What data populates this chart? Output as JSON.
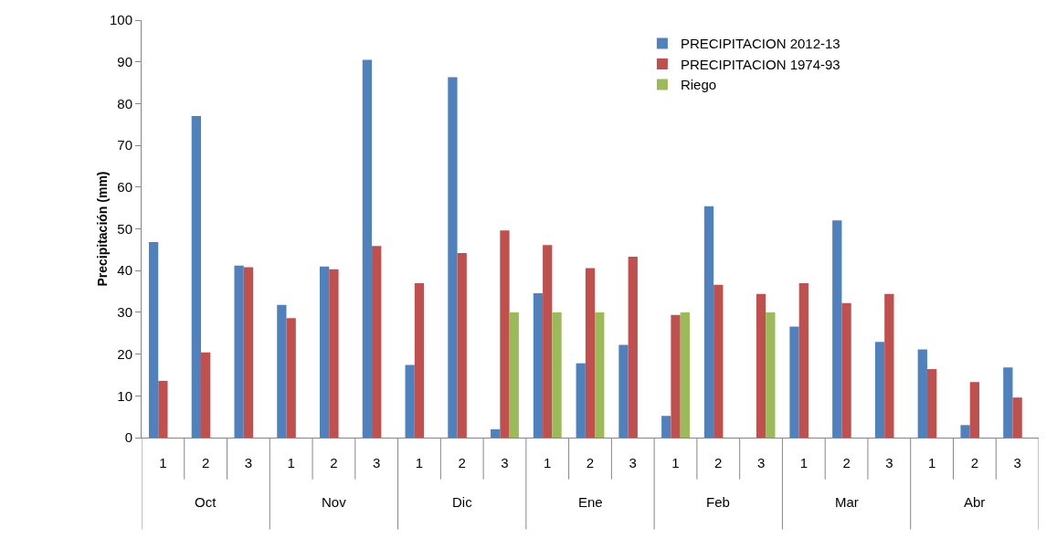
{
  "chart_data": {
    "type": "bar",
    "ylabel": "Precipitación (mm)",
    "categories": [
      "1",
      "2",
      "3",
      "1",
      "2",
      "3",
      "1",
      "2",
      "3",
      "1",
      "2",
      "3",
      "1",
      "2",
      "3",
      "1",
      "2",
      "3",
      "1",
      "2",
      "3"
    ],
    "annotations": [
      "Oct",
      "Nov",
      "Dic",
      "Ene",
      "Feb",
      "Mar",
      "Abr"
    ],
    "series": [
      {
        "name": "PRECIPITACION 2012-13",
        "color": "#4f81bd",
        "values": [
          46.8,
          77,
          41.2,
          31.8,
          41,
          90.5,
          17.4,
          86.3,
          2,
          34.6,
          17.8,
          22.2,
          5.2,
          55.4,
          null,
          26.6,
          52,
          22.9,
          21.1,
          3,
          16.8
        ]
      },
      {
        "name": "PRECIPITACION 1974-93",
        "color": "#c0504d",
        "values": [
          13.6,
          20.4,
          40.8,
          28.6,
          40.3,
          45.9,
          37,
          44.2,
          49.6,
          46.1,
          40.6,
          43.3,
          29.4,
          36.6,
          34.4,
          37,
          32.2,
          34.4,
          16.4,
          13.3,
          9.6
        ]
      },
      {
        "name": "Riego",
        "color": "#9bbb59",
        "values": [
          null,
          null,
          null,
          null,
          null,
          null,
          null,
          null,
          30,
          30,
          30,
          null,
          30,
          null,
          30,
          null,
          null,
          null,
          null,
          null,
          null
        ]
      }
    ],
    "ylim": [
      0,
      100
    ],
    "yticks": [
      0,
      10,
      20,
      30,
      40,
      50,
      60,
      70,
      80,
      90,
      100
    ],
    "grid": false,
    "legend": "top right"
  }
}
